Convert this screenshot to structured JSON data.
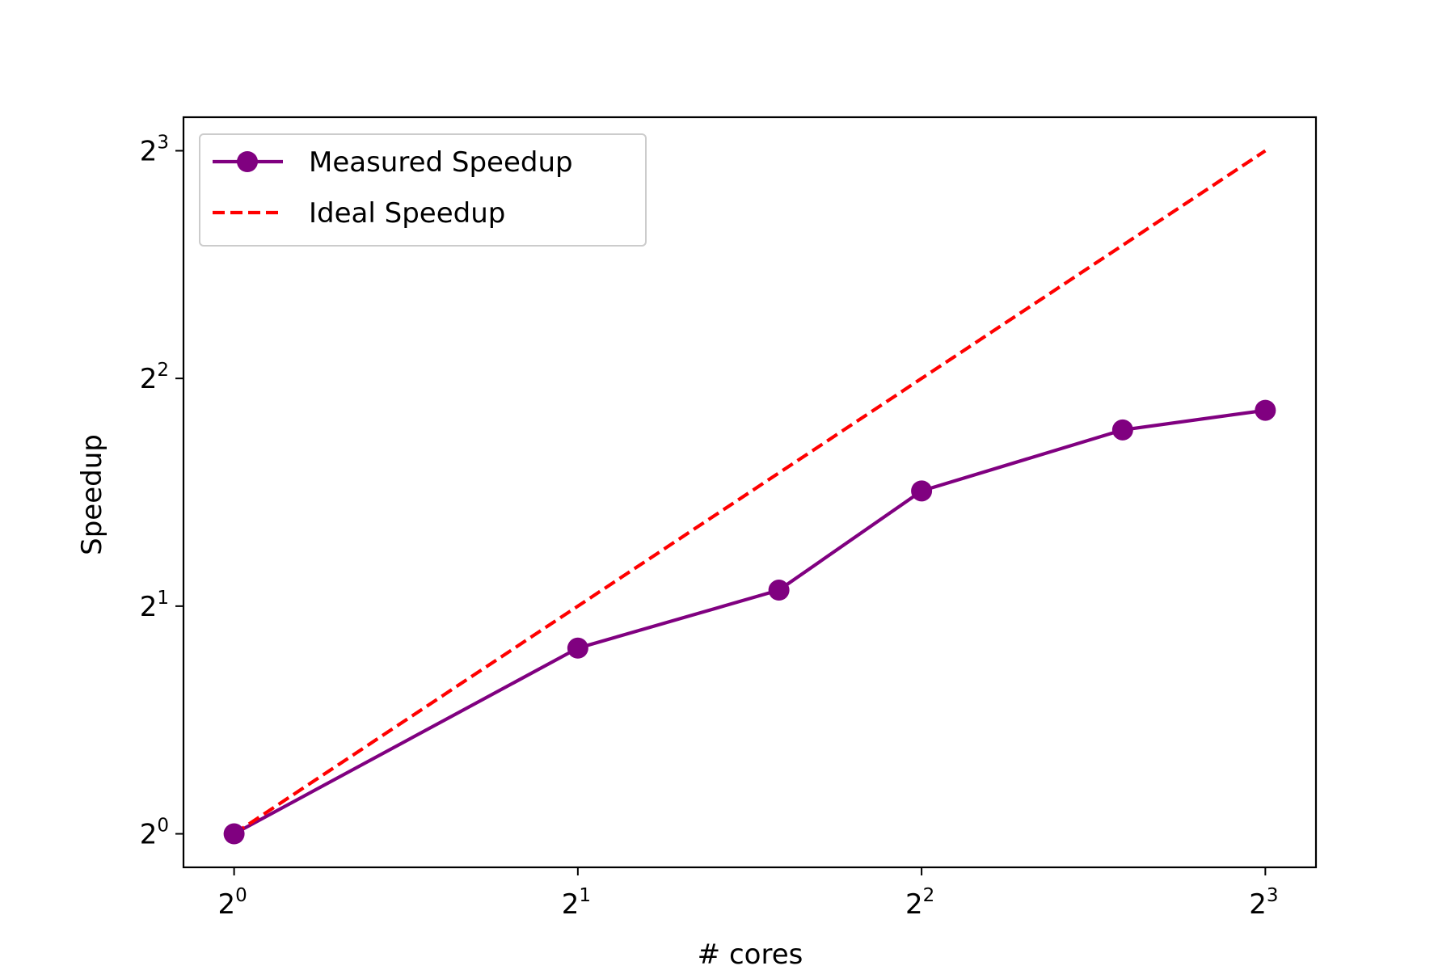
{
  "chart_data": {
    "type": "line",
    "title": "",
    "xlabel": "# cores",
    "ylabel": "Speedup",
    "x_scale": "log2",
    "y_scale": "log2",
    "xlim": [
      0.903,
      8.86
    ],
    "ylim": [
      0.903,
      8.86
    ],
    "grid": false,
    "legend_position": "top-left",
    "x_ticks": [
      {
        "base": "2",
        "exp": "0",
        "value": 1
      },
      {
        "base": "2",
        "exp": "1",
        "value": 2
      },
      {
        "base": "2",
        "exp": "2",
        "value": 4
      },
      {
        "base": "2",
        "exp": "3",
        "value": 8
      }
    ],
    "y_ticks": [
      {
        "base": "2",
        "exp": "0",
        "value": 1
      },
      {
        "base": "2",
        "exp": "1",
        "value": 2
      },
      {
        "base": "2",
        "exp": "2",
        "value": 4
      },
      {
        "base": "2",
        "exp": "3",
        "value": 8
      }
    ],
    "series": [
      {
        "name": "Measured Speedup",
        "color": "#800080",
        "style": "solid",
        "marker": "circle",
        "x": [
          1,
          2,
          3,
          4,
          6,
          8
        ],
        "y": [
          1.0,
          1.76,
          2.1,
          2.84,
          3.42,
          3.63
        ]
      },
      {
        "name": "Ideal Speedup",
        "color": "#ff0000",
        "style": "dashed",
        "marker": "none",
        "x": [
          1,
          2,
          4,
          8
        ],
        "y": [
          1,
          2,
          4,
          8
        ]
      }
    ]
  }
}
